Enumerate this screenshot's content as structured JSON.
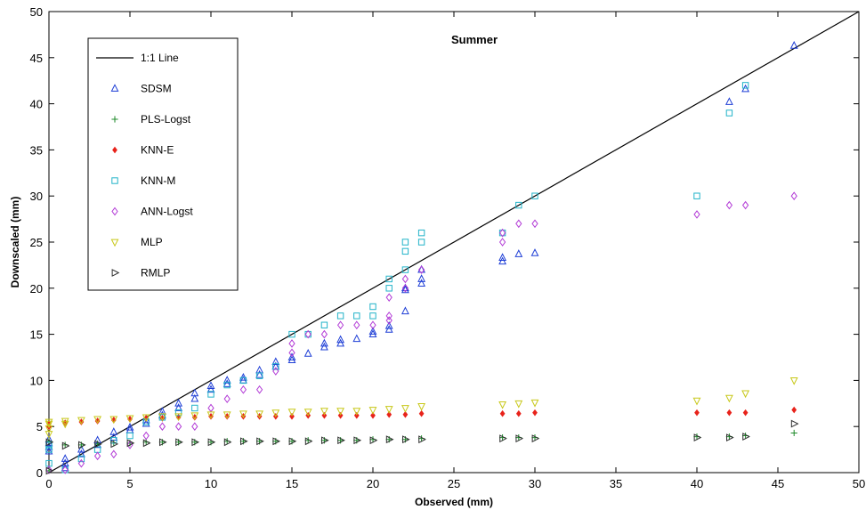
{
  "chart_data": {
    "type": "scatter",
    "title": "Summer",
    "xlabel": "Observed (mm)",
    "ylabel": "Downscaled (mm)",
    "xlim": [
      0,
      50
    ],
    "ylim": [
      0,
      50
    ],
    "xticks": [
      0,
      5,
      10,
      15,
      20,
      25,
      30,
      35,
      40,
      45,
      50
    ],
    "yticks": [
      0,
      5,
      10,
      15,
      20,
      25,
      30,
      35,
      40,
      45,
      50
    ],
    "grid": false,
    "legend_position": "top-left",
    "reference_line": {
      "name": "1:1 Line",
      "x": [
        0,
        50
      ],
      "y": [
        0,
        50
      ],
      "color": "#000000"
    },
    "series": [
      {
        "name": "SDSM",
        "marker": "triangle-up",
        "color": "#1f3fd6",
        "x": [
          0,
          0,
          0,
          0,
          1,
          1,
          1,
          2,
          2,
          3,
          3,
          4,
          4,
          5,
          5,
          6,
          6,
          7,
          7,
          8,
          8,
          9,
          9,
          10,
          10,
          11,
          11,
          12,
          12,
          13,
          13,
          14,
          14,
          15,
          15,
          16,
          17,
          17,
          18,
          18,
          19,
          20,
          20,
          21,
          21,
          22,
          22,
          22,
          23,
          23,
          23,
          28,
          28,
          29,
          30,
          42,
          43,
          46
        ],
        "y": [
          2.3,
          2.8,
          3.2,
          3.6,
          0.5,
          1.0,
          1.5,
          2.0,
          2.5,
          3.0,
          3.5,
          3.8,
          4.4,
          4.6,
          4.9,
          5.3,
          5.7,
          6.2,
          6.6,
          7.0,
          7.5,
          8.0,
          8.6,
          9.0,
          9.4,
          9.6,
          10.0,
          10.0,
          10.3,
          10.6,
          11.1,
          11.5,
          12.0,
          12.2,
          12.5,
          12.9,
          13.6,
          14.0,
          14.0,
          14.4,
          14.5,
          15.0,
          15.3,
          15.5,
          15.9,
          17.5,
          19.8,
          20.0,
          20.5,
          21.0,
          22.0,
          22.9,
          23.3,
          23.7,
          23.8,
          40.2,
          41.6,
          46.3
        ]
      },
      {
        "name": "PLS-Logst",
        "marker": "plus",
        "color": "#1e8a2a",
        "x": [
          0,
          0,
          1,
          2,
          3,
          4,
          5,
          6,
          7,
          8,
          9,
          10,
          11,
          12,
          13,
          14,
          15,
          16,
          17,
          18,
          19,
          20,
          21,
          22,
          23,
          28,
          29,
          30,
          40,
          42,
          43,
          46
        ],
        "y": [
          0.2,
          3.4,
          3.0,
          3.0,
          3.1,
          3.2,
          3.2,
          3.3,
          3.3,
          3.3,
          3.3,
          3.3,
          3.4,
          3.4,
          3.4,
          3.4,
          3.4,
          3.5,
          3.5,
          3.5,
          3.5,
          3.6,
          3.6,
          3.6,
          3.7,
          3.8,
          3.8,
          3.8,
          3.9,
          3.9,
          4.0,
          4.3
        ]
      },
      {
        "name": "KNN-E",
        "marker": "diamond-filled",
        "color": "#e8231b",
        "x": [
          0,
          0,
          1,
          2,
          3,
          4,
          5,
          6,
          7,
          8,
          9,
          10,
          11,
          12,
          13,
          14,
          15,
          16,
          17,
          18,
          19,
          20,
          21,
          22,
          23,
          28,
          29,
          30,
          40,
          42,
          43,
          46
        ],
        "y": [
          5.0,
          5.3,
          5.4,
          5.5,
          5.6,
          5.7,
          5.8,
          5.9,
          5.9,
          6.0,
          6.0,
          6.1,
          6.1,
          6.1,
          6.1,
          6.1,
          6.1,
          6.2,
          6.2,
          6.2,
          6.2,
          6.2,
          6.3,
          6.3,
          6.4,
          6.4,
          6.4,
          6.5,
          6.5,
          6.5,
          6.5,
          6.8
        ]
      },
      {
        "name": "KNN-M",
        "marker": "square",
        "color": "#22b3c9",
        "x": [
          0,
          0,
          0,
          1,
          2,
          3,
          4,
          5,
          6,
          7,
          8,
          9,
          10,
          11,
          12,
          13,
          14,
          15,
          16,
          17,
          18,
          19,
          20,
          20,
          21,
          21,
          22,
          22,
          22,
          23,
          23,
          28,
          29,
          30,
          40,
          42,
          43
        ],
        "y": [
          1.0,
          2.5,
          3.0,
          0.3,
          1.5,
          2.5,
          3.5,
          4.0,
          5.5,
          6.0,
          6.5,
          7.0,
          8.5,
          9.5,
          10.0,
          10.5,
          11.5,
          15.0,
          15.0,
          16.0,
          17.0,
          17.0,
          17.0,
          18.0,
          20.0,
          21.0,
          22.0,
          24.0,
          25.0,
          25.0,
          26.0,
          26.0,
          29.0,
          30.0,
          30.0,
          39.0,
          42.0
        ]
      },
      {
        "name": "ANN-Logst",
        "marker": "diamond",
        "color": "#b23ad6",
        "x": [
          0,
          1,
          2,
          3,
          4,
          5,
          6,
          7,
          8,
          9,
          10,
          11,
          12,
          13,
          14,
          15,
          15,
          16,
          17,
          18,
          19,
          20,
          21,
          21,
          21,
          22,
          22,
          23,
          28,
          28,
          29,
          30,
          40,
          42,
          43,
          46
        ],
        "y": [
          0.3,
          0.3,
          1.0,
          1.8,
          2.0,
          3.0,
          4.0,
          5.0,
          5.0,
          5.0,
          7.0,
          8.0,
          9.0,
          9.0,
          11.0,
          13.0,
          14.0,
          15.0,
          15.0,
          16.0,
          16.0,
          16.0,
          16.5,
          17.0,
          19.0,
          20.0,
          21.0,
          22.0,
          25.0,
          26.0,
          27.0,
          27.0,
          28.0,
          29.0,
          29.0,
          30.0
        ]
      },
      {
        "name": "MLP",
        "marker": "triangle-down",
        "color": "#c8c81a",
        "x": [
          0,
          0,
          0,
          0,
          1,
          1,
          2,
          3,
          4,
          5,
          6,
          7,
          8,
          9,
          10,
          11,
          12,
          13,
          14,
          15,
          16,
          17,
          18,
          19,
          20,
          21,
          22,
          23,
          28,
          29,
          30,
          40,
          42,
          43,
          46
        ],
        "y": [
          4.2,
          4.8,
          5.3,
          5.5,
          5.3,
          5.6,
          5.7,
          5.8,
          5.8,
          5.9,
          6.0,
          6.1,
          6.1,
          6.2,
          6.3,
          6.3,
          6.4,
          6.4,
          6.5,
          6.6,
          6.6,
          6.7,
          6.7,
          6.7,
          6.8,
          6.9,
          7.0,
          7.2,
          7.4,
          7.5,
          7.6,
          7.8,
          8.1,
          8.6,
          10.0
        ]
      },
      {
        "name": "RMLP",
        "marker": "triangle-right",
        "color": "#303030",
        "x": [
          0,
          0,
          1,
          2,
          3,
          4,
          5,
          6,
          7,
          8,
          9,
          10,
          11,
          12,
          13,
          14,
          15,
          16,
          17,
          18,
          19,
          20,
          21,
          22,
          23,
          28,
          29,
          30,
          40,
          42,
          43,
          46
        ],
        "y": [
          0.2,
          3.3,
          2.9,
          3.0,
          3.1,
          3.1,
          3.2,
          3.2,
          3.3,
          3.3,
          3.3,
          3.3,
          3.3,
          3.4,
          3.4,
          3.4,
          3.4,
          3.4,
          3.5,
          3.5,
          3.5,
          3.5,
          3.6,
          3.6,
          3.6,
          3.7,
          3.7,
          3.7,
          3.8,
          3.8,
          3.9,
          5.3
        ]
      }
    ]
  }
}
